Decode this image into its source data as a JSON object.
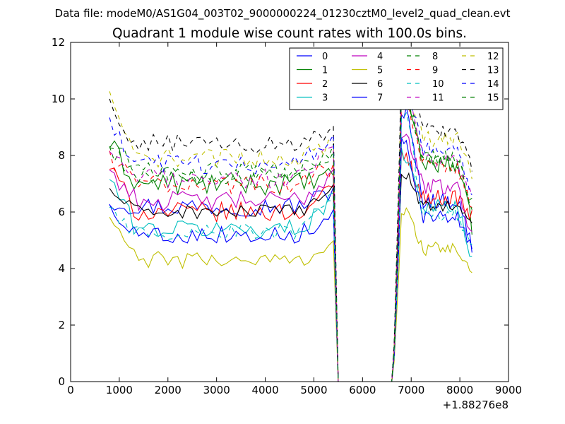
{
  "chart_data": {
    "type": "line",
    "suptitle": "Data file: modeM0/AS1G04_003T02_9000000224_01230cztM0_level2_quad_clean.evt",
    "title": "Quadrant 1 module wise count rates with 100.0s bins.",
    "xlabel": "",
    "ylabel": "",
    "x_offset_label": "+1.88276e8",
    "xlim": [
      0,
      9000
    ],
    "ylim": [
      0,
      12
    ],
    "xticks": [
      "0",
      "1000",
      "2000",
      "3000",
      "4000",
      "5000",
      "6000",
      "7000",
      "8000",
      "9000"
    ],
    "yticks": [
      "0",
      "2",
      "4",
      "6",
      "8",
      "10",
      "12"
    ],
    "bin_width_s": 100,
    "segment1": {
      "x_start": 800,
      "x_end": 5400,
      "step": 100
    },
    "gap": {
      "x_start": 5500,
      "x_end": 6600,
      "value": 0
    },
    "ramp_down_points": [
      5450,
      5500
    ],
    "ramp_up_points": [
      6650,
      6700,
      6750
    ],
    "segment2": {
      "x_start": 6800,
      "x_end": 8250,
      "step": 50
    },
    "legend_position": "top-right",
    "series": [
      {
        "name": "0",
        "color": "#0000ff",
        "dash": "solid",
        "start": 6.4,
        "level1": 6.2,
        "peak": 9.5,
        "level2": 6.4,
        "end": 4.8,
        "end_level1": 6.8,
        "noise": 0.35
      },
      {
        "name": "1",
        "color": "#008000",
        "dash": "solid",
        "start": 8.4,
        "level1": 7.0,
        "peak": 10.3,
        "level2": 7.7,
        "end": 5.5,
        "end_level1": 7.2,
        "noise": 0.4
      },
      {
        "name": "2",
        "color": "#ff0000",
        "dash": "solid",
        "start": 7.6,
        "level1": 6.0,
        "peak": 8.0,
        "level2": 6.5,
        "end": 5.8,
        "end_level1": 6.8,
        "noise": 0.35
      },
      {
        "name": "3",
        "color": "#00bfbf",
        "dash": "solid",
        "start": 7.2,
        "level1": 5.4,
        "peak": 8.0,
        "level2": 6.2,
        "end": 4.2,
        "end_level1": 6.6,
        "noise": 0.35
      },
      {
        "name": "4",
        "color": "#bf00bf",
        "dash": "solid",
        "start": 7.5,
        "level1": 6.4,
        "peak": 8.8,
        "level2": 6.9,
        "end": 5.1,
        "end_level1": 7.4,
        "noise": 0.35
      },
      {
        "name": "5",
        "color": "#bfbf00",
        "dash": "solid",
        "start": 5.8,
        "level1": 4.3,
        "peak": 6.0,
        "level2": 4.7,
        "end": 3.7,
        "end_level1": 4.9,
        "noise": 0.3
      },
      {
        "name": "6",
        "color": "#000000",
        "dash": "solid",
        "start": 6.8,
        "level1": 6.0,
        "peak": 7.3,
        "level2": 6.2,
        "end": 5.5,
        "end_level1": 6.9,
        "noise": 0.25
      },
      {
        "name": "7",
        "color": "#0000ff",
        "dash": "solid",
        "start": 6.2,
        "level1": 5.2,
        "peak": 8.5,
        "level2": 5.8,
        "end": 4.6,
        "end_level1": 6.0,
        "noise": 0.3
      },
      {
        "name": "8",
        "color": "#008000",
        "dash": "dashed",
        "start": 8.2,
        "level1": 7.4,
        "peak": 9.9,
        "level2": 7.9,
        "end": 6.4,
        "end_level1": 8.3,
        "noise": 0.35
      },
      {
        "name": "9",
        "color": "#ff0000",
        "dash": "dashed",
        "start": 8.0,
        "level1": 7.0,
        "peak": 10.0,
        "level2": 7.6,
        "end": 6.1,
        "end_level1": 7.6,
        "noise": 0.35
      },
      {
        "name": "10",
        "color": "#00bfbf",
        "dash": "dashed",
        "start": 6.0,
        "level1": 5.3,
        "peak": 9.4,
        "level2": 5.9,
        "end": 4.8,
        "end_level1": 6.3,
        "noise": 0.3
      },
      {
        "name": "11",
        "color": "#bf00bf",
        "dash": "dashed",
        "start": 7.9,
        "level1": 7.2,
        "peak": 10.6,
        "level2": 7.8,
        "end": 6.6,
        "end_level1": 8.2,
        "noise": 0.35
      },
      {
        "name": "12",
        "color": "#bfbf00",
        "dash": "dashed",
        "start": 10.0,
        "level1": 7.9,
        "peak": 10.8,
        "level2": 8.6,
        "end": 7.2,
        "end_level1": 8.5,
        "noise": 0.35
      },
      {
        "name": "13",
        "color": "#000000",
        "dash": "dashed",
        "start": 9.7,
        "level1": 8.4,
        "peak": 11.0,
        "level2": 8.9,
        "end": 7.5,
        "end_level1": 8.9,
        "noise": 0.35
      },
      {
        "name": "14",
        "color": "#0000ff",
        "dash": "dashed",
        "start": 9.0,
        "level1": 7.7,
        "peak": 10.5,
        "level2": 8.2,
        "end": 6.7,
        "end_level1": 8.6,
        "noise": 0.35
      },
      {
        "name": "15",
        "color": "#008000",
        "dash": "dashed",
        "start": 8.6,
        "level1": 7.3,
        "peak": 10.2,
        "level2": 7.8,
        "end": 6.2,
        "end_level1": 8.0,
        "noise": 0.35
      }
    ]
  }
}
